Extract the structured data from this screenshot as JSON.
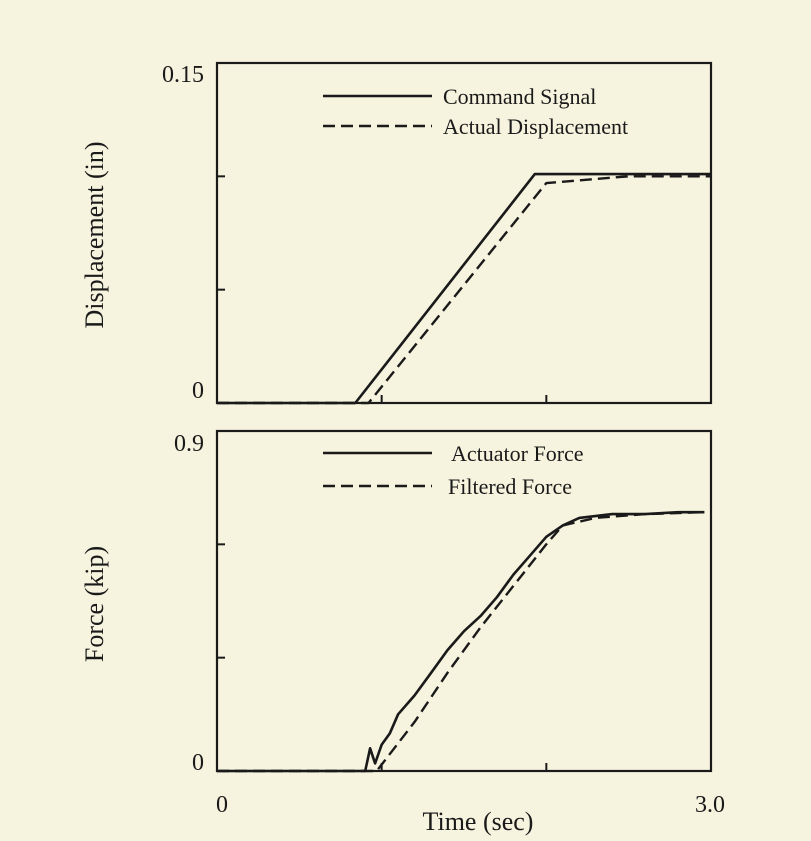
{
  "chart_data": [
    {
      "type": "line",
      "title": "",
      "xlabel": "",
      "ylabel": "Displacement (in)",
      "xlim": [
        0,
        3.0
      ],
      "ylim": [
        0,
        0.15
      ],
      "y_tick_labels": [
        "0",
        "0.15"
      ],
      "y_ticks": [
        0,
        0.05,
        0.1,
        0.15
      ],
      "x_ticks": [
        1.0,
        2.0
      ],
      "legend_position": "top-right",
      "series": [
        {
          "name": "Command Signal",
          "style": "solid",
          "x": [
            0,
            0.84,
            1.93,
            3.0
          ],
          "y": [
            0,
            0,
            0.101,
            0.101
          ]
        },
        {
          "name": "Actual Displacement",
          "style": "dashed",
          "x": [
            0,
            0.92,
            2.0,
            2.5,
            3.0
          ],
          "y": [
            0,
            0,
            0.097,
            0.1,
            0.1
          ]
        }
      ]
    },
    {
      "type": "line",
      "title": "",
      "xlabel": "Time (sec)",
      "ylabel": "Force (kip)",
      "xlim": [
        0,
        3.0
      ],
      "ylim": [
        0,
        0.9
      ],
      "y_tick_labels": [
        "0",
        "0.9"
      ],
      "x_tick_labels": [
        "0",
        "3.0"
      ],
      "y_ticks": [
        0,
        0.3,
        0.6,
        0.9
      ],
      "x_ticks": [
        0,
        1.0,
        2.0,
        3.0
      ],
      "legend_position": "top-right",
      "series": [
        {
          "name": "Actuator Force",
          "style": "solid",
          "x": [
            0,
            0.9,
            0.93,
            0.96,
            1.0,
            1.05,
            1.1,
            1.2,
            1.3,
            1.4,
            1.5,
            1.6,
            1.7,
            1.8,
            1.9,
            2.0,
            2.1,
            2.2,
            2.4,
            2.6,
            2.8,
            2.96
          ],
          "y": [
            0,
            0,
            0.06,
            0.02,
            0.07,
            0.1,
            0.15,
            0.2,
            0.26,
            0.32,
            0.37,
            0.41,
            0.46,
            0.52,
            0.57,
            0.62,
            0.65,
            0.67,
            0.68,
            0.68,
            0.685,
            0.685
          ]
        },
        {
          "name": "Filtered Force",
          "style": "dashed",
          "x": [
            0,
            0.97,
            1.2,
            1.4,
            1.6,
            1.8,
            2.0,
            2.1,
            2.3,
            2.6,
            2.96
          ],
          "y": [
            0,
            0,
            0.13,
            0.26,
            0.38,
            0.49,
            0.6,
            0.65,
            0.67,
            0.68,
            0.685
          ]
        }
      ]
    }
  ]
}
